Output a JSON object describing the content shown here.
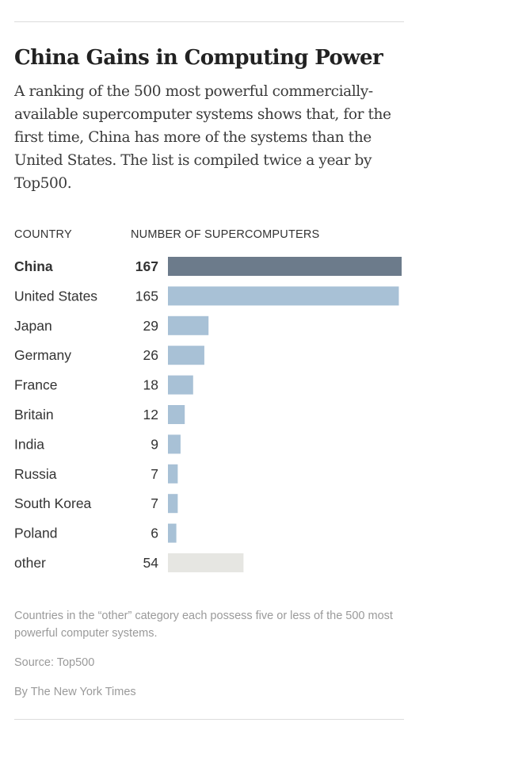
{
  "header": {
    "title": "China Gains in Computing Power",
    "subtitle": "A ranking of the 500 most powerful commercially-available supercomputer systems shows that, for the first time, China has more of the systems than the United States. The list is compiled twice a year by Top500."
  },
  "columns": {
    "country": "COUNTRY",
    "number": "NUMBER OF SUPERCOMPUTERS"
  },
  "chart_data": {
    "type": "bar",
    "orientation": "horizontal",
    "title": "China Gains in Computing Power",
    "xlabel": "NUMBER OF SUPERCOMPUTERS",
    "ylabel": "COUNTRY",
    "xlim": [
      0,
      167
    ],
    "grid": false,
    "legend": "none",
    "categories": [
      "China",
      "United States",
      "Japan",
      "Germany",
      "France",
      "Britain",
      "India",
      "Russia",
      "South Korea",
      "Poland",
      "other"
    ],
    "values": [
      167,
      165,
      29,
      26,
      18,
      12,
      9,
      7,
      7,
      6,
      54
    ],
    "highlight": "China",
    "colors": {
      "highlight": "#6c7b8b",
      "default": "#a8c1d6",
      "other": "#e6e6e2"
    }
  },
  "footer": {
    "footnote": "Countries in the “other” category each possess five or less of the 500 most powerful computer systems.",
    "source": "Source: Top500",
    "credit": "By The New York Times"
  }
}
